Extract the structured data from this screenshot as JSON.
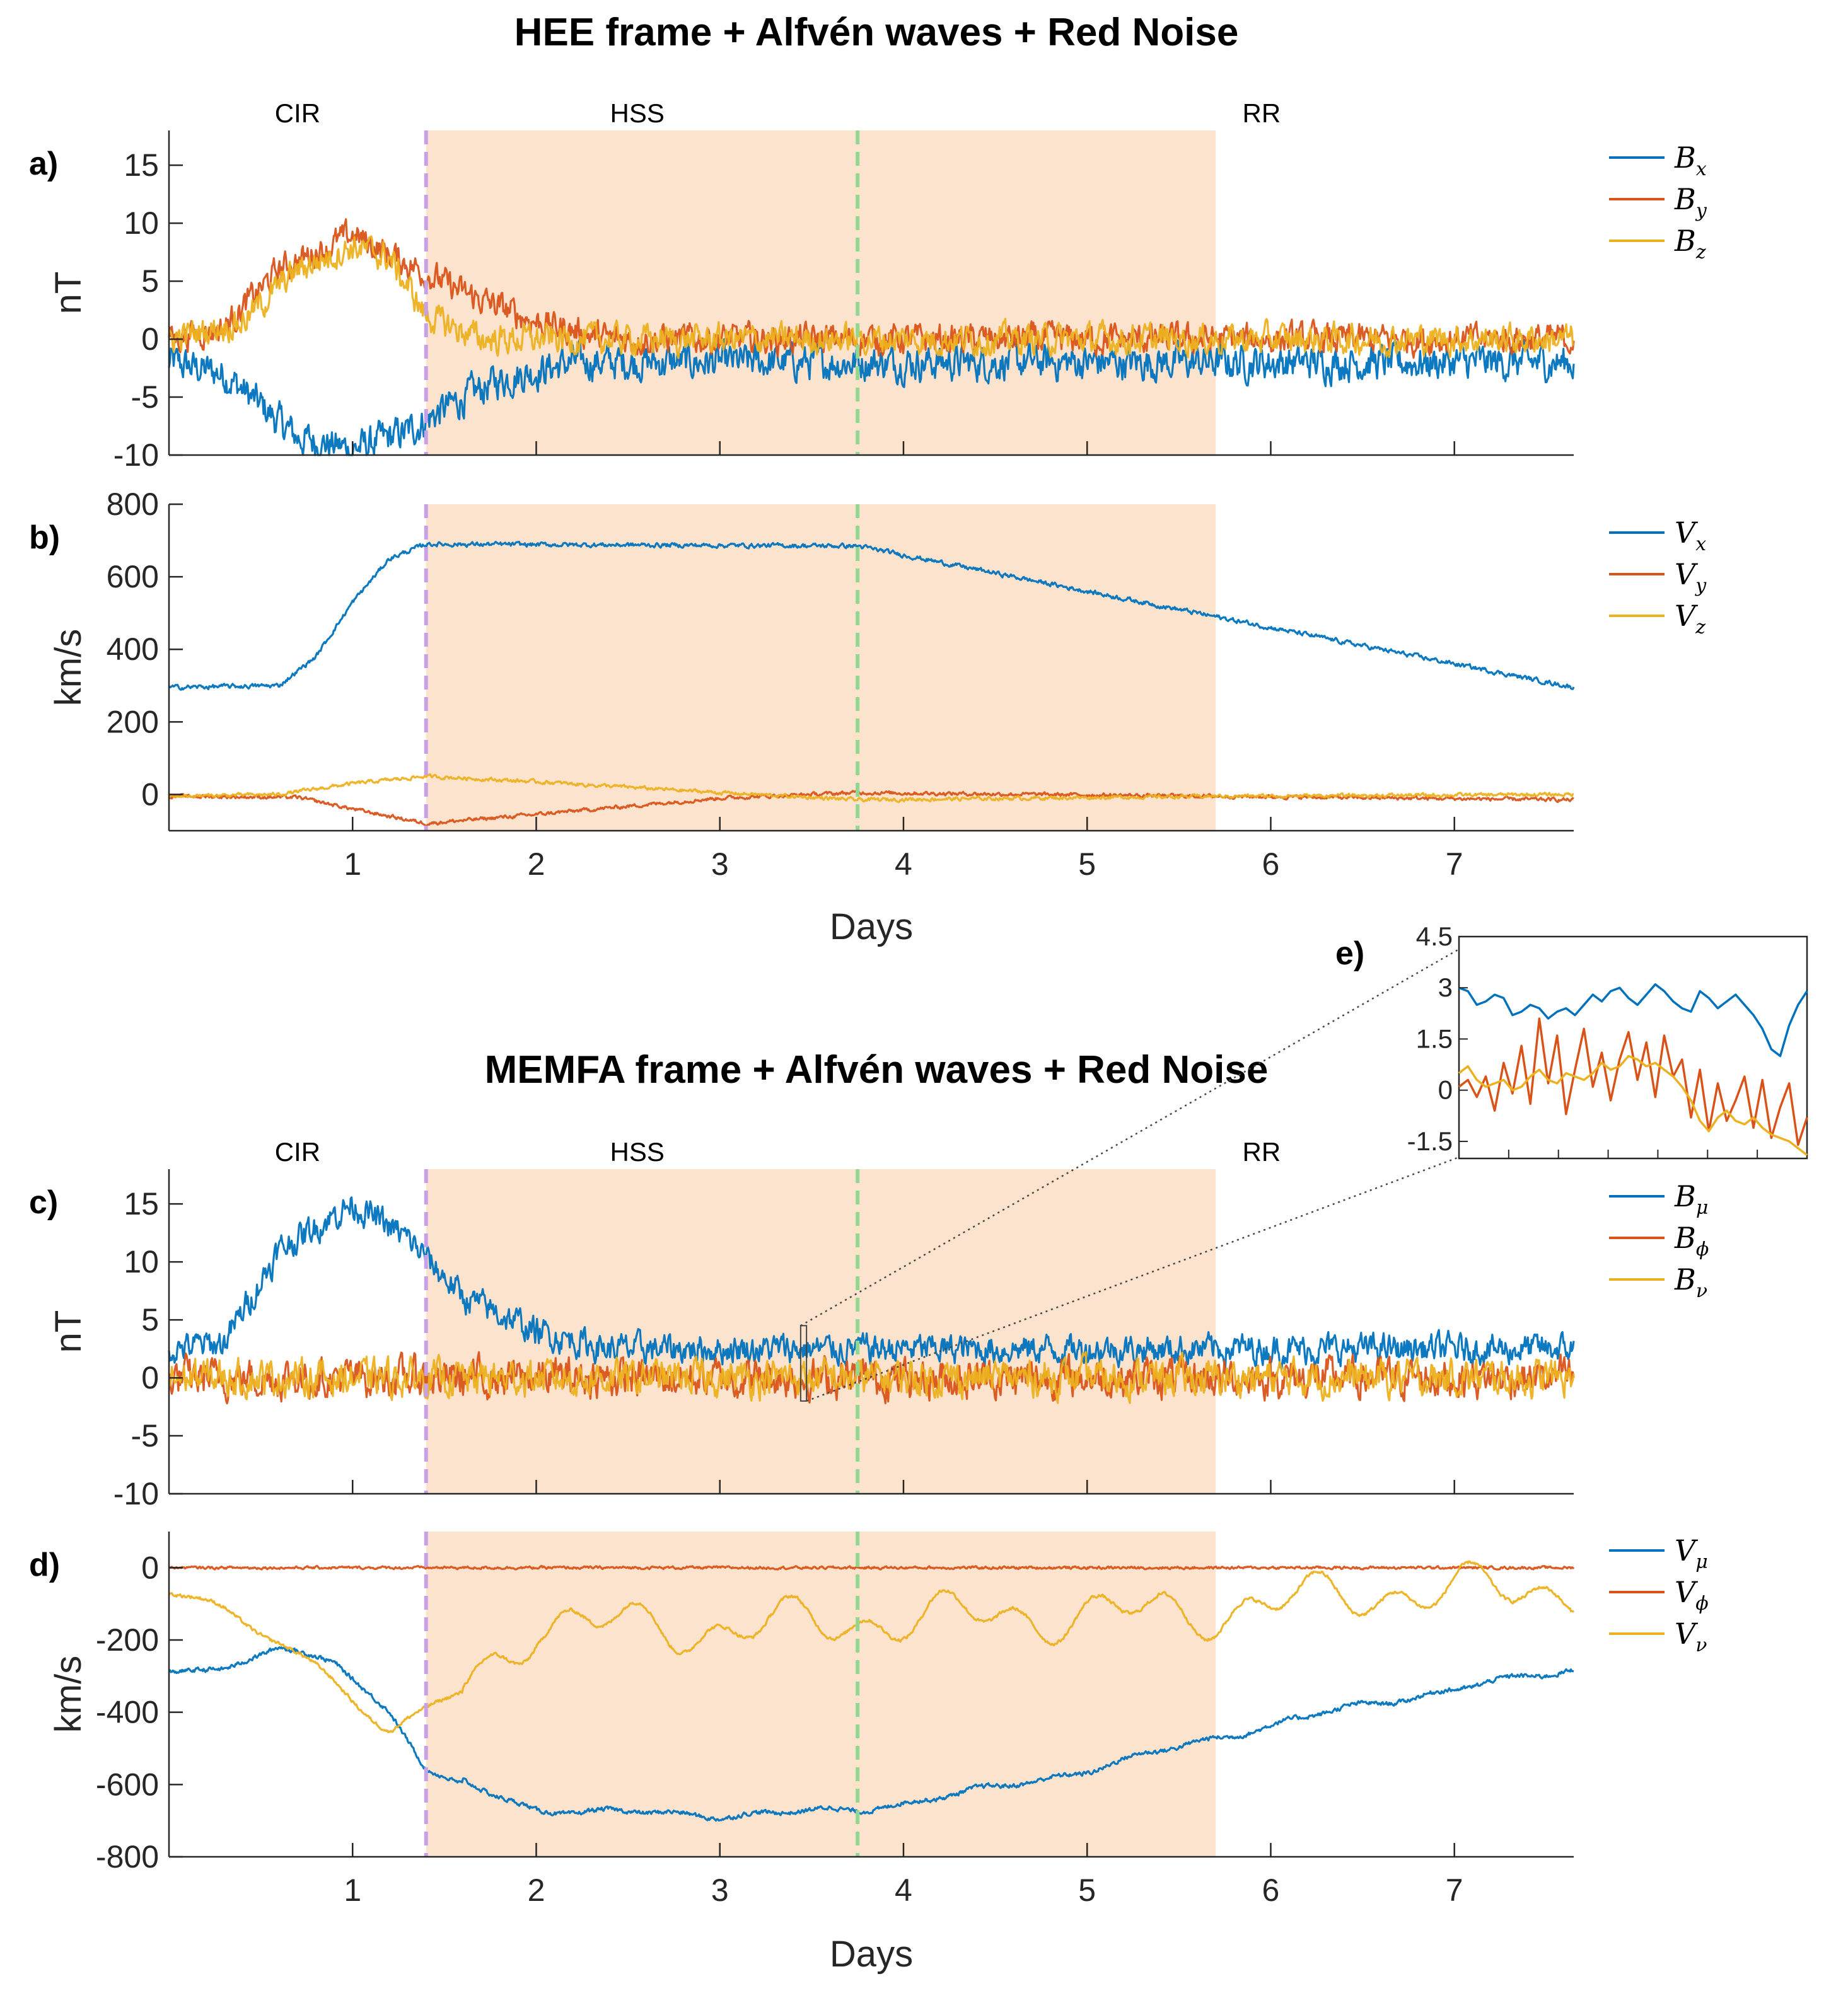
{
  "colors": {
    "blue": "#0072BD",
    "orange": "#D95319",
    "yellow": "#EDB120",
    "shade": "#FBE3CD",
    "purple": "#C8A0E8",
    "green": "#90D890"
  },
  "chart_data": [
    {
      "id": "a",
      "type": "line",
      "panel_label": "a)",
      "title": "HEE frame + Alfvén waves + Red Noise",
      "ylabel": "nT",
      "xlabel": "",
      "xlim": [
        0,
        7.65
      ],
      "ylim": [
        -10,
        18
      ],
      "yticks": [
        -10,
        -5,
        0,
        5,
        10,
        15
      ],
      "xticks": [
        1,
        2,
        3,
        4,
        5,
        6,
        7
      ],
      "show_xticklabels": false,
      "regions": [
        "CIR",
        "HSS",
        "RR"
      ],
      "shaded_interval": [
        1.4,
        5.7
      ],
      "vlines": [
        {
          "x": 1.4,
          "color": "purple"
        },
        {
          "x": 3.75,
          "color": "green"
        }
      ],
      "series": [
        {
          "name": "B",
          "sub": "x",
          "color": "blue",
          "noise": 1.2,
          "anchors": [
            [
              0,
              -2
            ],
            [
              0.3,
              -3
            ],
            [
              0.7,
              -8.5
            ],
            [
              1.0,
              -9.5
            ],
            [
              1.3,
              -8
            ],
            [
              1.5,
              -6
            ],
            [
              1.8,
              -3.5
            ],
            [
              2.2,
              -2
            ],
            [
              3,
              -2
            ],
            [
              5.7,
              -2
            ],
            [
              7.65,
              -2
            ]
          ]
        },
        {
          "name": "B",
          "sub": "y",
          "color": "orange",
          "noise": 1.0,
          "anchors": [
            [
              0,
              0
            ],
            [
              0.3,
              1
            ],
            [
              0.6,
              6
            ],
            [
              1.0,
              9
            ],
            [
              1.3,
              6.5
            ],
            [
              1.6,
              4
            ],
            [
              2.0,
              1.5
            ],
            [
              2.4,
              0
            ],
            [
              7.65,
              0
            ]
          ]
        },
        {
          "name": "B",
          "sub": "z",
          "color": "yellow",
          "noise": 1.0,
          "anchors": [
            [
              0,
              0
            ],
            [
              0.4,
              1.5
            ],
            [
              0.7,
              6
            ],
            [
              1.0,
              8
            ],
            [
              1.2,
              7
            ],
            [
              1.4,
              2
            ],
            [
              1.7,
              0
            ],
            [
              7.65,
              0
            ]
          ]
        }
      ]
    },
    {
      "id": "b",
      "type": "line",
      "panel_label": "b)",
      "ylabel": "km/s",
      "xlabel": "Days",
      "xlim": [
        0,
        7.65
      ],
      "ylim": [
        -100,
        800
      ],
      "yticks": [
        0,
        200,
        400,
        600,
        800
      ],
      "xticks": [
        1,
        2,
        3,
        4,
        5,
        6,
        7
      ],
      "show_xticklabels": true,
      "shaded_interval": [
        1.4,
        5.7
      ],
      "vlines": [
        {
          "x": 1.4,
          "color": "purple"
        },
        {
          "x": 3.75,
          "color": "green"
        }
      ],
      "series": [
        {
          "name": "V",
          "sub": "x",
          "color": "blue",
          "noise": 5,
          "anchors": [
            [
              0,
              295
            ],
            [
              0.6,
              300
            ],
            [
              0.8,
              380
            ],
            [
              1.0,
              530
            ],
            [
              1.2,
              650
            ],
            [
              1.4,
              690
            ],
            [
              3.75,
              685
            ],
            [
              5.7,
              490
            ],
            [
              7.65,
              295
            ]
          ]
        },
        {
          "name": "V",
          "sub": "y",
          "color": "orange",
          "noise": 4,
          "anchors": [
            [
              0,
              -5
            ],
            [
              0.7,
              -8
            ],
            [
              1.0,
              -40
            ],
            [
              1.4,
              -80
            ],
            [
              2.0,
              -55
            ],
            [
              3.0,
              -10
            ],
            [
              3.75,
              5
            ],
            [
              5.7,
              -5
            ],
            [
              7.65,
              -15
            ]
          ]
        },
        {
          "name": "V",
          "sub": "z",
          "color": "yellow",
          "noise": 4,
          "anchors": [
            [
              0,
              -5
            ],
            [
              0.6,
              0
            ],
            [
              1.0,
              30
            ],
            [
              1.4,
              50
            ],
            [
              2.0,
              35
            ],
            [
              3.0,
              5
            ],
            [
              3.75,
              -15
            ],
            [
              5.7,
              -5
            ],
            [
              7.65,
              0
            ]
          ]
        }
      ]
    },
    {
      "id": "c",
      "type": "line",
      "panel_label": "c)",
      "title": "MEMFA frame + Alfvén waves + Red Noise",
      "ylabel": "nT",
      "xlabel": "",
      "xlim": [
        0,
        7.65
      ],
      "ylim": [
        -10,
        18
      ],
      "yticks": [
        -10,
        -5,
        0,
        5,
        10,
        15
      ],
      "xticks": [
        1,
        2,
        3,
        4,
        5,
        6,
        7
      ],
      "show_xticklabels": false,
      "regions": [
        "CIR",
        "HSS",
        "RR"
      ],
      "shaded_interval": [
        1.4,
        5.7
      ],
      "vlines": [
        {
          "x": 1.4,
          "color": "purple"
        },
        {
          "x": 3.75,
          "color": "green"
        }
      ],
      "series": [
        {
          "name": "B",
          "sub": "μ",
          "color": "blue",
          "noise": 1.0,
          "anchors": [
            [
              0,
              2.5
            ],
            [
              0.3,
              3
            ],
            [
              0.6,
              11
            ],
            [
              1.0,
              15
            ],
            [
              1.3,
              12
            ],
            [
              1.6,
              7
            ],
            [
              2.0,
              4
            ],
            [
              2.4,
              2.5
            ],
            [
              7.65,
              2.5
            ]
          ]
        },
        {
          "name": "B",
          "sub": "ϕ",
          "color": "orange",
          "noise": 1.3,
          "anchors": [
            [
              0,
              0
            ],
            [
              7.65,
              0
            ]
          ]
        },
        {
          "name": "B",
          "sub": "ν",
          "color": "yellow",
          "noise": 1.2,
          "anchors": [
            [
              0,
              0
            ],
            [
              7.65,
              0
            ]
          ]
        }
      ]
    },
    {
      "id": "d",
      "type": "line",
      "panel_label": "d)",
      "ylabel": "km/s",
      "xlabel": "Days",
      "xlim": [
        0,
        7.65
      ],
      "ylim": [
        -800,
        100
      ],
      "yticks": [
        -800,
        -600,
        -400,
        -200,
        0
      ],
      "xticks": [
        1,
        2,
        3,
        4,
        5,
        6,
        7
      ],
      "show_xticklabels": true,
      "shaded_interval": [
        1.4,
        5.7
      ],
      "vlines": [
        {
          "x": 1.4,
          "color": "purple"
        },
        {
          "x": 3.75,
          "color": "green"
        }
      ],
      "series": [
        {
          "name": "V",
          "sub": "μ",
          "color": "blue",
          "noise": 5,
          "wave": 12,
          "anchors": [
            [
              0,
              -290
            ],
            [
              0.3,
              -280
            ],
            [
              0.6,
              -220
            ],
            [
              0.9,
              -260
            ],
            [
              1.2,
              -400
            ],
            [
              1.4,
              -560
            ],
            [
              2.0,
              -670
            ],
            [
              3.0,
              -685
            ],
            [
              3.75,
              -670
            ],
            [
              4.5,
              -610
            ],
            [
              5.0,
              -560
            ],
            [
              5.7,
              -470
            ],
            [
              6.5,
              -380
            ],
            [
              7.65,
              -280
            ]
          ]
        },
        {
          "name": "V",
          "sub": "ϕ",
          "color": "orange",
          "noise": 3,
          "anchors": [
            [
              0,
              0
            ],
            [
              7.65,
              0
            ]
          ]
        },
        {
          "name": "V",
          "sub": "ν",
          "color": "yellow",
          "noise": 4,
          "wave": 90,
          "anchors": [
            [
              0,
              -60
            ],
            [
              0.3,
              -120
            ],
            [
              0.6,
              -200
            ],
            [
              0.9,
              -320
            ],
            [
              1.2,
              -450
            ],
            [
              1.4,
              -400
            ],
            [
              1.7,
              -300
            ],
            [
              2.0,
              -150
            ],
            [
              3.0,
              -170
            ],
            [
              4.0,
              -140
            ],
            [
              5.0,
              -130
            ],
            [
              5.7,
              -120
            ],
            [
              6.5,
              -70
            ],
            [
              7.65,
              -60
            ]
          ]
        }
      ]
    },
    {
      "id": "e",
      "type": "line",
      "panel_label": "e)",
      "inset": true,
      "xlim": [
        3.44,
        3.465
      ],
      "ylim": [
        -2,
        4.5
      ],
      "yticks": [
        -1.5,
        0,
        1.5,
        3,
        4.5
      ],
      "series": [
        {
          "sub": "μ",
          "color": "blue",
          "values": [
            3.0,
            2.9,
            2.5,
            2.6,
            2.8,
            2.7,
            2.2,
            2.3,
            2.5,
            2.4,
            2.1,
            2.3,
            2.4,
            2.2,
            2.5,
            2.8,
            2.6,
            2.9,
            3.0,
            2.7,
            2.5,
            2.8,
            3.1,
            2.9,
            2.6,
            2.4,
            2.3,
            2.9,
            2.7,
            2.4,
            2.6,
            2.8,
            2.5,
            2.2,
            1.8,
            1.2,
            1.0,
            1.9,
            2.5,
            2.9
          ]
        },
        {
          "sub": "ϕ",
          "color": "orange",
          "values": [
            0.1,
            0.3,
            -0.2,
            0.4,
            -0.6,
            0.8,
            -0.1,
            1.3,
            -0.4,
            2.1,
            0.2,
            1.6,
            -0.7,
            0.6,
            1.8,
            0.1,
            1.1,
            -0.3,
            0.9,
            1.7,
            0.3,
            1.4,
            -0.2,
            1.6,
            0.4,
            0.9,
            -0.8,
            0.6,
            -1.2,
            0.2,
            -0.9,
            -0.3,
            0.4,
            -1.1,
            0.3,
            -1.4,
            -0.5,
            0.2,
            -1.6,
            -0.8
          ]
        },
        {
          "sub": "ν",
          "color": "yellow",
          "values": [
            0.5,
            0.7,
            0.3,
            0.1,
            0.2,
            0.3,
            0.0,
            0.1,
            0.4,
            0.6,
            0.3,
            0.2,
            0.5,
            0.4,
            0.3,
            0.5,
            0.8,
            0.6,
            0.7,
            1.0,
            0.9,
            0.7,
            0.8,
            0.6,
            0.4,
            0.1,
            -0.3,
            -0.9,
            -1.2,
            -0.8,
            -0.6,
            -0.9,
            -1.0,
            -0.8,
            -1.1,
            -1.3,
            -1.4,
            -1.5,
            -1.7,
            -1.9
          ]
        }
      ]
    }
  ]
}
